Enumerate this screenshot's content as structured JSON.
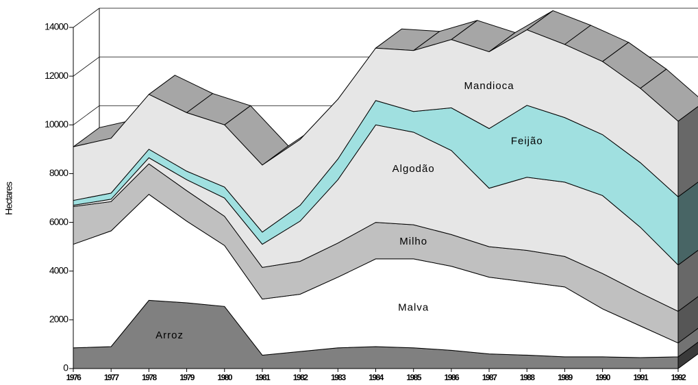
{
  "chart_data": {
    "type": "stacked_area_3d",
    "y_label": "Hectares",
    "categories": [
      "1976",
      "1977",
      "1978",
      "1979",
      "1980",
      "1981",
      "1982",
      "1983",
      "1984",
      "1985",
      "1986",
      "1987",
      "1988",
      "1989",
      "1990",
      "1991",
      "1992"
    ],
    "series": [
      {
        "name": "Arroz",
        "color": "#808080",
        "values": [
          850,
          900,
          2800,
          2700,
          2550,
          550,
          700,
          850,
          900,
          850,
          750,
          600,
          550,
          480,
          480,
          450,
          480
        ]
      },
      {
        "name": "Malva",
        "color": "#ffffff",
        "values": [
          4250,
          4750,
          4350,
          3350,
          2500,
          2300,
          2350,
          2900,
          3600,
          3650,
          3450,
          3150,
          3000,
          2870,
          1970,
          1300,
          570
        ]
      },
      {
        "name": "Milho",
        "color": "#c0c0c0",
        "values": [
          1550,
          1200,
          1250,
          1250,
          1200,
          1300,
          1350,
          1400,
          1500,
          1400,
          1300,
          1250,
          1300,
          1250,
          1450,
          1350,
          1300
        ]
      },
      {
        "name": "Algodão",
        "color": "#e6e6e6",
        "values": [
          50,
          100,
          250,
          450,
          750,
          950,
          1650,
          2600,
          4000,
          3800,
          3450,
          2400,
          3000,
          3050,
          3200,
          2700,
          1900
        ]
      },
      {
        "name": "Feijão",
        "color": "#a0e0e0",
        "values": [
          200,
          250,
          350,
          350,
          450,
          500,
          650,
          850,
          1000,
          850,
          1750,
          2450,
          2950,
          2650,
          2500,
          2650,
          2800
        ]
      },
      {
        "name": "Mandioca",
        "color": "#e6e6e6",
        "values": [
          2200,
          2250,
          2250,
          2400,
          2550,
          2750,
          2700,
          2450,
          2150,
          2500,
          2800,
          3150,
          3100,
          3000,
          3000,
          3050,
          3100
        ]
      }
    ],
    "ylim": [
      0,
      14000
    ],
    "yticks": [
      0,
      2000,
      4000,
      6000,
      8000,
      10000,
      12000,
      14000
    ],
    "grid": true
  }
}
